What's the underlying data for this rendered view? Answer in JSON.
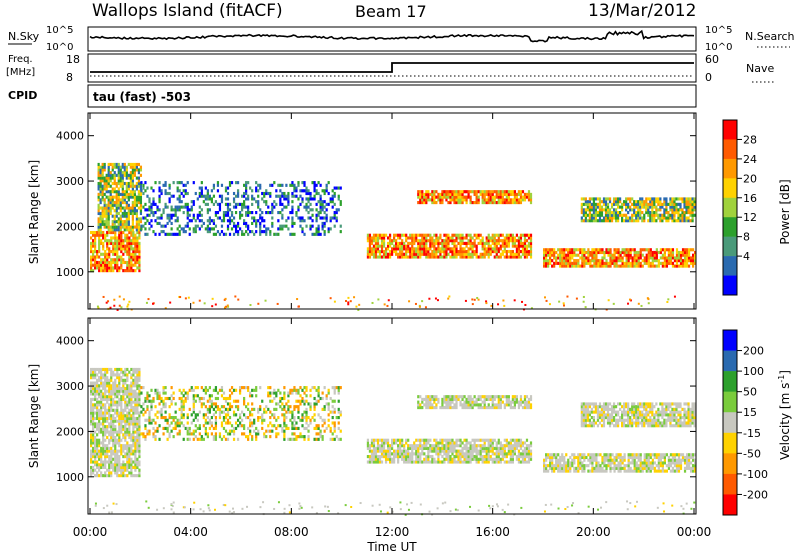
{
  "header": {
    "station": "Wallops Island (fitACF)",
    "beam": "Beam 17",
    "date": "13/Mar/2012"
  },
  "noise_panel": {
    "left_label": "N.Sky",
    "right_label": "N.Search",
    "left_ticks": [
      "10^5",
      "10^0"
    ],
    "right_ticks": [
      "10^5",
      "10^0"
    ]
  },
  "freq_panel": {
    "left_label_line1": "Freq.",
    "left_label_line2": "[MHz]",
    "right_label": "Nave",
    "left_ticks": [
      "18",
      "8"
    ],
    "right_ticks": [
      "60",
      "0"
    ]
  },
  "cpid_panel": {
    "label": "CPID",
    "program": "tau (fast) -503"
  },
  "x_axis": {
    "label": "Time UT",
    "ticks": [
      "00:00",
      "04:00",
      "08:00",
      "12:00",
      "16:00",
      "20:00",
      "00:00"
    ]
  },
  "chart_data": [
    {
      "type": "heatmap",
      "name": "power",
      "ylabel": "Slant Range [km]",
      "yticks": [
        "4000",
        "3000",
        "2000",
        "1000"
      ],
      "ylim": [
        180,
        4500
      ],
      "xlim_hours": [
        0,
        24
      ],
      "colorbar": {
        "label": "Power [dB]",
        "ticks": [
          "28",
          "24",
          "20",
          "16",
          "12",
          "8",
          "4"
        ],
        "colors": [
          "#ff0000",
          "#ff5a00",
          "#ff9900",
          "#ffd200",
          "#a0d23c",
          "#2ca02c",
          "#4a9a7a",
          "#2a6ab0",
          "#0000ff"
        ]
      },
      "bands": [
        {
          "t0": 0.0,
          "t1": 2.0,
          "r0": 1000,
          "r1": 1900,
          "level": "high"
        },
        {
          "t0": 0.3,
          "t1": 2.0,
          "r0": 1900,
          "r1": 3400,
          "level": "mid"
        },
        {
          "t0": 2.0,
          "t1": 10.0,
          "r0": 1800,
          "r1": 3000,
          "level": "low"
        },
        {
          "t0": 11.0,
          "t1": 17.5,
          "r0": 1300,
          "r1": 1800,
          "level": "high"
        },
        {
          "t0": 13.0,
          "t1": 17.5,
          "r0": 2500,
          "r1": 2800,
          "level": "high"
        },
        {
          "t0": 18.0,
          "t1": 24.0,
          "r0": 1100,
          "r1": 1500,
          "level": "high"
        },
        {
          "t0": 19.5,
          "t1": 24.0,
          "r0": 2100,
          "r1": 2600,
          "level": "mid"
        }
      ]
    },
    {
      "type": "heatmap",
      "name": "velocity",
      "ylabel": "Slant Range [km]",
      "yticks": [
        "4000",
        "3000",
        "2000",
        "1000"
      ],
      "ylim": [
        180,
        4500
      ],
      "xlim_hours": [
        0,
        24
      ],
      "colorbar": {
        "label_main": "Velocity [m s",
        "label_exp": "-1",
        "label_end": "]",
        "ticks": [
          "200",
          "100",
          "50",
          "15",
          "-15",
          "-50",
          "-100",
          "-200"
        ],
        "colors": [
          "#0000ff",
          "#2a6ab0",
          "#2ca02c",
          "#7acc3c",
          "#c8c8c0",
          "#ffd200",
          "#ff9900",
          "#ff5a00",
          "#ff0000"
        ]
      },
      "bands": [
        {
          "t0": 0.0,
          "t1": 2.0,
          "r0": 1000,
          "r1": 3400,
          "level": "gs"
        },
        {
          "t0": 2.0,
          "t1": 10.0,
          "r0": 1800,
          "r1": 3000,
          "level": "low"
        },
        {
          "t0": 11.0,
          "t1": 17.5,
          "r0": 1300,
          "r1": 1800,
          "level": "gs"
        },
        {
          "t0": 13.0,
          "t1": 17.5,
          "r0": 2500,
          "r1": 2800,
          "level": "gs"
        },
        {
          "t0": 18.0,
          "t1": 24.0,
          "r0": 1100,
          "r1": 1500,
          "level": "gs"
        },
        {
          "t0": 19.5,
          "t1": 24.0,
          "r0": 2100,
          "r1": 2600,
          "level": "gs"
        }
      ]
    }
  ]
}
